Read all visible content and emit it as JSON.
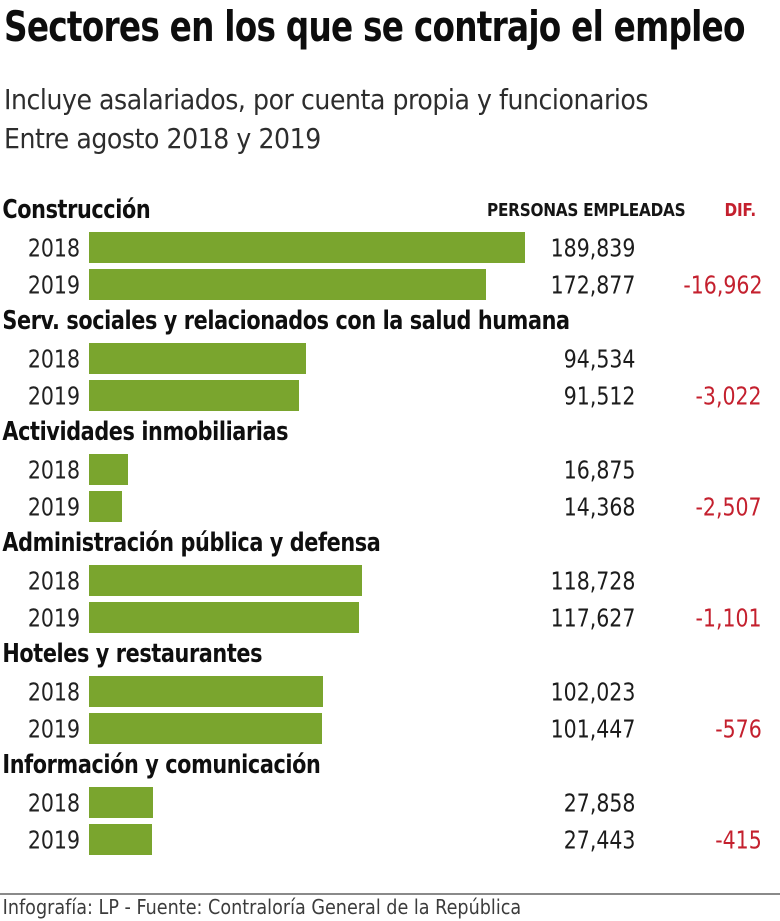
{
  "title": "Sectores en los que se contrajo el empleo",
  "subtitle": [
    "Incluye asalariados, por cuenta propia y funcionarios",
    "Entre agosto 2018 y 2019"
  ],
  "column_headers": {
    "employed": "PERSONAS EMPLEADAS",
    "diff": "DIF."
  },
  "footer": "Infografía: LP - Fuente: Contraloría General de la República",
  "colors": {
    "bar_green": "#7aa52e",
    "diff_red": "#c4202e"
  },
  "chart_data": {
    "type": "bar",
    "orientation": "horizontal",
    "title": "Sectores en los que se contrajo el empleo",
    "subtitle": "Incluye asalariados, por cuenta propia y funcionarios. Entre agosto 2018 y 2019",
    "value_column_label": "PERSONAS EMPLEADAS",
    "diff_column_label": "DIF.",
    "max_value": 189839,
    "years": [
      "2018",
      "2019"
    ],
    "sectors": [
      {
        "name": "Construcción",
        "rows": [
          {
            "year": "2018",
            "employed": 189839,
            "label": "189,839"
          },
          {
            "year": "2019",
            "employed": 172877,
            "label": "172,877",
            "diff": "-16,962"
          }
        ]
      },
      {
        "name": "Serv. sociales y relacionados con la salud humana",
        "rows": [
          {
            "year": "2018",
            "employed": 94534,
            "label": "94,534"
          },
          {
            "year": "2019",
            "employed": 91512,
            "label": "91,512",
            "diff": "-3,022"
          }
        ]
      },
      {
        "name": "Actividades inmobiliarias",
        "rows": [
          {
            "year": "2018",
            "employed": 16875,
            "label": "16,875"
          },
          {
            "year": "2019",
            "employed": 14368,
            "label": "14,368",
            "diff": "-2,507"
          }
        ]
      },
      {
        "name": "Administración pública y defensa",
        "rows": [
          {
            "year": "2018",
            "employed": 118728,
            "label": "118,728"
          },
          {
            "year": "2019",
            "employed": 117627,
            "label": "117,627",
            "diff": "-1,101"
          }
        ]
      },
      {
        "name": "Hoteles y restaurantes",
        "rows": [
          {
            "year": "2018",
            "employed": 102023,
            "label": "102,023"
          },
          {
            "year": "2019",
            "employed": 101447,
            "label": "101,447",
            "diff": "-576"
          }
        ]
      },
      {
        "name": "Información y comunicación",
        "rows": [
          {
            "year": "2018",
            "employed": 27858,
            "label": "27,858"
          },
          {
            "year": "2019",
            "employed": 27443,
            "label": "27,443",
            "diff": "-415"
          }
        ]
      }
    ]
  }
}
